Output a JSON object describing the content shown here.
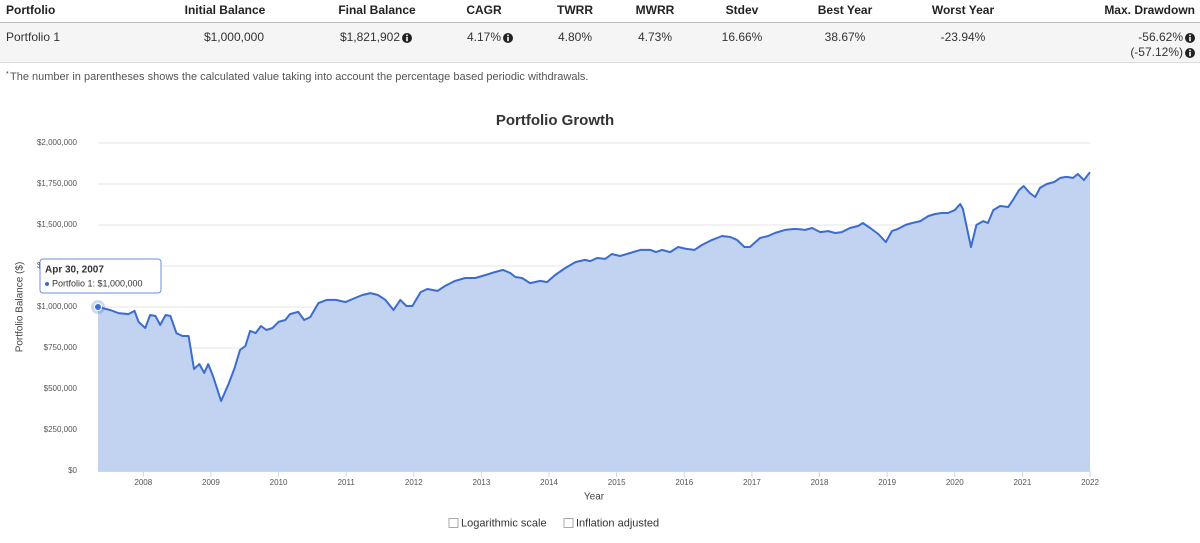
{
  "table": {
    "columns": [
      "Portfolio",
      "Initial Balance",
      "Final Balance",
      "CAGR",
      "TWRR",
      "MWRR",
      "Stdev",
      "Best Year",
      "Worst Year",
      "Max. Drawdown"
    ],
    "rows": [
      [
        "Portfolio 1",
        "$1,000,000",
        "$1,821,902",
        "4.17%",
        "4.80%",
        "4.73%",
        "16.66%",
        "38.67%",
        "-23.94%",
        [
          "-56.62%",
          "(-57.12%)"
        ]
      ]
    ]
  },
  "footnote": {
    "mark": "*",
    "text": "The number in parentheses shows the calculated value taking into account the percentage based periodic withdrawals."
  },
  "chart_data": {
    "type": "area",
    "title": "Portfolio Growth",
    "x_label": "Year",
    "y_label": "Portfolio Balance ($)",
    "x": [
      2007.33,
      2007.51,
      2007.63,
      2007.78,
      2007.87,
      2007.93,
      2008.03,
      2008.1,
      2008.18,
      2008.25,
      2008.33,
      2008.4,
      2008.49,
      2008.58,
      2008.67,
      2008.75,
      2008.83,
      2008.9,
      2008.96,
      2009.03,
      2009.15,
      2009.26,
      2009.35,
      2009.43,
      2009.51,
      2009.58,
      2009.66,
      2009.74,
      2009.82,
      2009.91,
      2010.0,
      2010.1,
      2010.17,
      2010.29,
      2010.38,
      2010.47,
      2010.59,
      2010.71,
      2010.85,
      2010.99,
      2011.13,
      2011.24,
      2011.36,
      2011.47,
      2011.58,
      2011.7,
      2011.8,
      2011.89,
      2011.98,
      2012.1,
      2012.2,
      2012.35,
      2012.46,
      2012.61,
      2012.76,
      2012.91,
      2013.06,
      2013.2,
      2013.32,
      2013.43,
      2013.5,
      2013.6,
      2013.72,
      2013.87,
      2013.97,
      2014.09,
      2014.24,
      2014.39,
      2014.53,
      2014.61,
      2014.71,
      2014.83,
      2014.93,
      2015.05,
      2015.2,
      2015.35,
      2015.5,
      2015.58,
      2015.67,
      2015.79,
      2015.91,
      2016.03,
      2016.15,
      2016.26,
      2016.41,
      2016.56,
      2016.68,
      2016.78,
      2016.89,
      2016.97,
      2017.12,
      2017.24,
      2017.34,
      2017.49,
      2017.64,
      2017.79,
      2017.89,
      2018.01,
      2018.13,
      2018.23,
      2018.33,
      2018.45,
      2018.57,
      2018.64,
      2018.75,
      2018.87,
      2018.98,
      2019.07,
      2019.16,
      2019.27,
      2019.37,
      2019.49,
      2019.61,
      2019.71,
      2019.81,
      2019.9,
      2020.0,
      2020.08,
      2020.12,
      2020.24,
      2020.32,
      2020.42,
      2020.49,
      2020.57,
      2020.67,
      2020.79,
      2020.86,
      2020.95,
      2021.02,
      2021.11,
      2021.19,
      2021.26,
      2021.36,
      2021.47,
      2021.56,
      2021.65,
      2021.75,
      2021.82,
      2021.91,
      2022.0
    ],
    "series": [
      {
        "name": "Portfolio 1",
        "color": "#3b6cd0",
        "fill": "#c2d2f1",
        "values": [
          1000000,
          982000,
          963000,
          957000,
          976000,
          909000,
          872000,
          951000,
          945000,
          890000,
          951000,
          945000,
          841000,
          823000,
          823000,
          622000,
          652000,
          598000,
          652000,
          579000,
          427000,
          530000,
          628000,
          738000,
          762000,
          854000,
          841000,
          884000,
          860000,
          872000,
          909000,
          921000,
          957000,
          970000,
          921000,
          939000,
          1024000,
          1043000,
          1043000,
          1030000,
          1055000,
          1073000,
          1085000,
          1073000,
          1043000,
          982000,
          1043000,
          1006000,
          1006000,
          1091000,
          1110000,
          1098000,
          1128000,
          1159000,
          1177000,
          1177000,
          1195000,
          1213000,
          1226000,
          1207000,
          1183000,
          1177000,
          1146000,
          1159000,
          1152000,
          1195000,
          1238000,
          1274000,
          1287000,
          1280000,
          1299000,
          1293000,
          1323000,
          1311000,
          1329000,
          1348000,
          1348000,
          1335000,
          1348000,
          1335000,
          1366000,
          1354000,
          1348000,
          1378000,
          1409000,
          1433000,
          1427000,
          1409000,
          1366000,
          1366000,
          1421000,
          1433000,
          1451000,
          1470000,
          1476000,
          1470000,
          1482000,
          1457000,
          1463000,
          1451000,
          1457000,
          1482000,
          1494000,
          1512000,
          1482000,
          1445000,
          1396000,
          1463000,
          1476000,
          1500000,
          1512000,
          1524000,
          1555000,
          1567000,
          1573000,
          1573000,
          1591000,
          1628000,
          1598000,
          1366000,
          1500000,
          1524000,
          1512000,
          1591000,
          1616000,
          1610000,
          1652000,
          1713000,
          1738000,
          1695000,
          1671000,
          1726000,
          1750000,
          1762000,
          1787000,
          1793000,
          1787000,
          1811000,
          1774000,
          1821902
        ]
      }
    ],
    "xlim": [
      2007.33,
      2022.0
    ],
    "xticks": [
      2008,
      2009,
      2010,
      2011,
      2012,
      2013,
      2014,
      2015,
      2016,
      2017,
      2018,
      2019,
      2020,
      2021,
      2022
    ],
    "ylim": [
      0,
      2000000
    ],
    "yticks": [
      {
        "value": 0,
        "label": "$0"
      },
      {
        "value": 250000,
        "label": "$250,000"
      },
      {
        "value": 500000,
        "label": "$500,000"
      },
      {
        "value": 750000,
        "label": "$750,000"
      },
      {
        "value": 1000000,
        "label": "$1,000,000"
      },
      {
        "value": 1250000,
        "label": "$1,250,000"
      },
      {
        "value": 1500000,
        "label": "$1,500,000"
      },
      {
        "value": 1750000,
        "label": "$1,750,000"
      },
      {
        "value": 2000000,
        "label": "$2,000,000"
      }
    ],
    "grid": true,
    "log_scale": false,
    "tooltip": {
      "title": "Apr 30, 2007",
      "text": "Portfolio 1: $1,000,000"
    },
    "controls": [
      {
        "label": "Logarithmic scale",
        "checked": false
      },
      {
        "label": "Inflation adjusted",
        "checked": false
      }
    ]
  }
}
